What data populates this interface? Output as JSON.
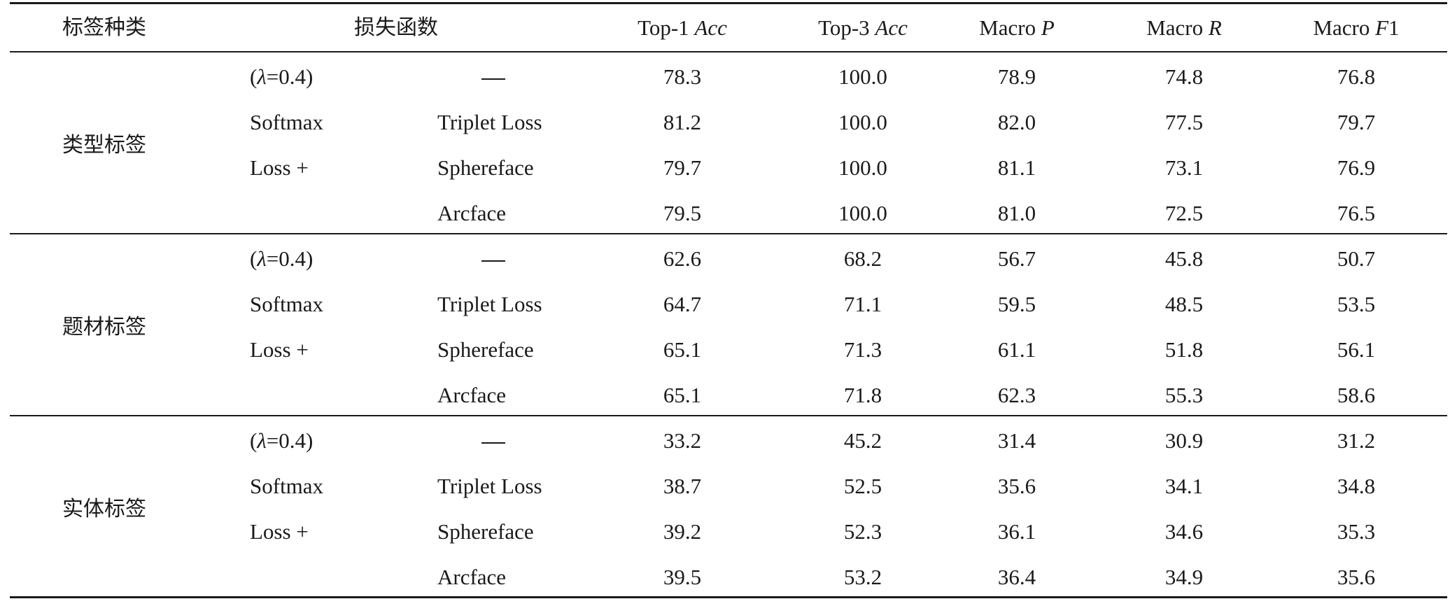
{
  "header": {
    "label_type": "标签种类",
    "loss_fn": "损失函数",
    "top1_prefix": "Top-1 ",
    "top1_ital": "Acc",
    "top3_prefix": "Top-3 ",
    "top3_ital": "Acc",
    "mp_prefix": "Macro ",
    "mp_ital": "P",
    "mr_prefix": "Macro ",
    "mr_ital": "R",
    "mf_prefix": "Macro ",
    "mf_ital": "F",
    "mf_suffix": "1"
  },
  "groups": [
    {
      "name": "类型标签",
      "loss_lines": [
        "=0.4)",
        "Softmax",
        "Loss +"
      ],
      "lambda_open": "(",
      "lambda_symbol": "λ",
      "rows": [
        {
          "method": "",
          "top1": "78.3",
          "top3": "100.0",
          "p": "78.9",
          "r": "74.8",
          "f1": "76.8"
        },
        {
          "method": "Triplet Loss",
          "top1": "81.2",
          "top3": "100.0",
          "p": "82.0",
          "r": "77.5",
          "f1": "79.7"
        },
        {
          "method": "Sphereface",
          "top1": "79.7",
          "top3": "100.0",
          "p": "81.1",
          "r": "73.1",
          "f1": "76.9"
        },
        {
          "method": "Arcface",
          "top1": "79.5",
          "top3": "100.0",
          "p": "81.0",
          "r": "72.5",
          "f1": "76.5"
        }
      ]
    },
    {
      "name": "题材标签",
      "loss_lines": [
        "=0.4)",
        "Softmax",
        "Loss +"
      ],
      "lambda_open": "(",
      "lambda_symbol": "λ",
      "rows": [
        {
          "method": "",
          "top1": "62.6",
          "top3": "68.2",
          "p": "56.7",
          "r": "45.8",
          "f1": "50.7"
        },
        {
          "method": "Triplet Loss",
          "top1": "64.7",
          "top3": "71.1",
          "p": "59.5",
          "r": "48.5",
          "f1": "53.5"
        },
        {
          "method": "Sphereface",
          "top1": "65.1",
          "top3": "71.3",
          "p": "61.1",
          "r": "51.8",
          "f1": "56.1"
        },
        {
          "method": "Arcface",
          "top1": "65.1",
          "top3": "71.8",
          "p": "62.3",
          "r": "55.3",
          "f1": "58.6"
        }
      ]
    },
    {
      "name": "实体标签",
      "loss_lines": [
        "=0.4)",
        "Softmax",
        "Loss +"
      ],
      "lambda_open": "(",
      "lambda_symbol": "λ",
      "rows": [
        {
          "method": "",
          "top1": "33.2",
          "top3": "45.2",
          "p": "31.4",
          "r": "30.9",
          "f1": "31.2"
        },
        {
          "method": "Triplet Loss",
          "top1": "38.7",
          "top3": "52.5",
          "p": "35.6",
          "r": "34.1",
          "f1": "34.8"
        },
        {
          "method": "Sphereface",
          "top1": "39.2",
          "top3": "52.3",
          "p": "36.1",
          "r": "34.6",
          "f1": "35.3"
        },
        {
          "method": "Arcface",
          "top1": "39.5",
          "top3": "53.2",
          "p": "36.4",
          "r": "34.9",
          "f1": "35.6"
        }
      ]
    }
  ]
}
